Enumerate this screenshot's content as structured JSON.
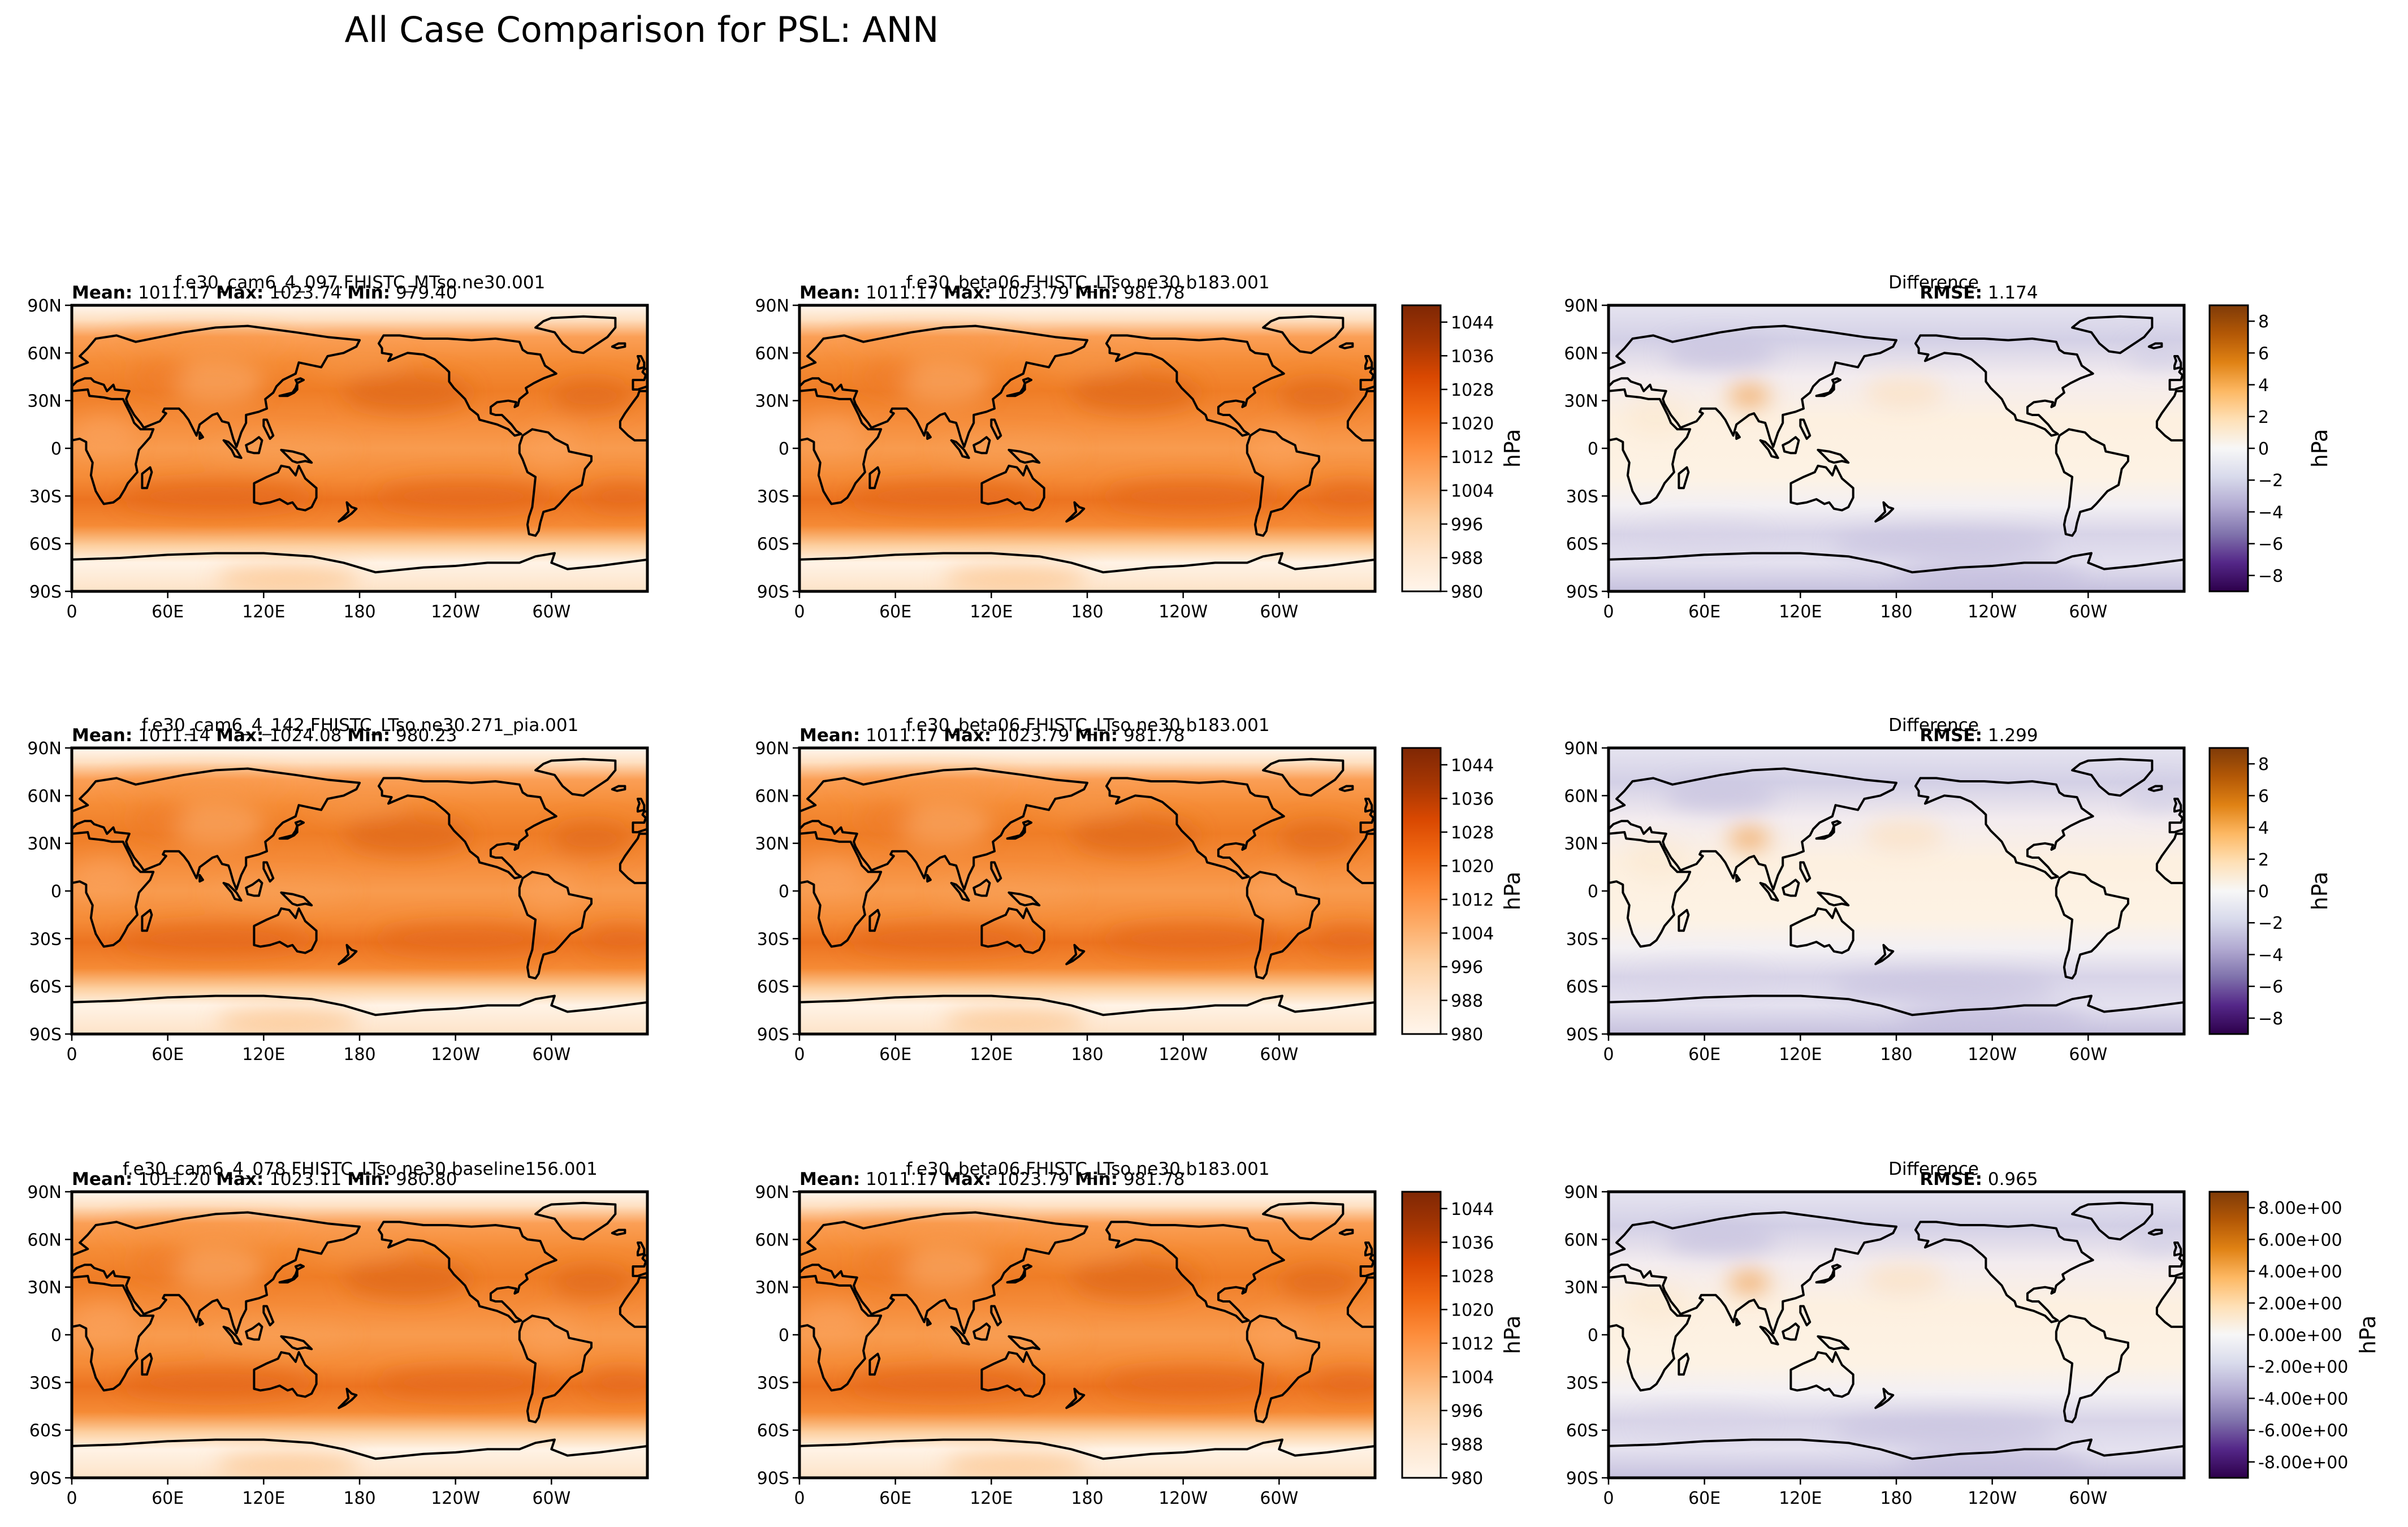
{
  "figure": {
    "title": "All Case Comparison for PSL: ANN"
  },
  "axes": {
    "x_ticks": [
      "0",
      "60E",
      "120E",
      "180",
      "120W",
      "60W"
    ],
    "y_ticks": [
      "90N",
      "60N",
      "30N",
      "0",
      "30S",
      "60S",
      "90S"
    ]
  },
  "colorbars": {
    "field": {
      "label": "hPa",
      "range": [
        980,
        1048
      ],
      "ticks": [
        "1044",
        "1036",
        "1028",
        "1020",
        "1012",
        "1004",
        "996",
        "988",
        "980"
      ],
      "colors": [
        "#fff5eb",
        "#fee6ce",
        "#fdd0a2",
        "#fdae6b",
        "#fd8d3c",
        "#f16913",
        "#d94801",
        "#a63603",
        "#7f2704"
      ]
    },
    "diff": {
      "label": "hPa",
      "range": [
        -9,
        9
      ],
      "ticks_plain": [
        "8",
        "6",
        "4",
        "2",
        "0",
        "−2",
        "−4",
        "−6",
        "−8"
      ],
      "ticks_sci": [
        "8.00e+00",
        "6.00e+00",
        "4.00e+00",
        "2.00e+00",
        "0.00e+00",
        "-2.00e+00",
        "-4.00e+00",
        "-6.00e+00",
        "-8.00e+00"
      ],
      "colors": [
        "#2d004b",
        "#542788",
        "#8073ac",
        "#b2abd2",
        "#d8daeb",
        "#f7f7f7",
        "#fee0b6",
        "#fdb863",
        "#e08214",
        "#b35806",
        "#7f3b08"
      ]
    }
  },
  "labels": {
    "mean": "Mean:",
    "max": "Max:",
    "min": "Min:",
    "rmse": "RMSE:",
    "difference": "Difference"
  },
  "chart_data": [
    {
      "type": "heatmap",
      "variable": "PSL",
      "rows": [
        {
          "test": {
            "title": "f.e30_cam6_4_097.FHISTC_MTso.ne30.001",
            "mean": "1011.17",
            "max": "1023.74",
            "min": "979.40"
          },
          "ref": {
            "title": "f.e30_beta06.FHISTC_LTso.ne30.b183.001",
            "mean": "1011.17",
            "max": "1023.79",
            "min": "981.78"
          },
          "diff": {
            "title": "Difference",
            "rmse": "1.174",
            "tick_style": "plain"
          }
        },
        {
          "test": {
            "title": "f.e30_cam6_4_142.FHISTC_LTso.ne30.271_pia.001",
            "mean": "1011.14",
            "max": "1024.08",
            "min": "980.23"
          },
          "ref": {
            "title": "f.e30_beta06.FHISTC_LTso.ne30.b183.001",
            "mean": "1011.17",
            "max": "1023.79",
            "min": "981.78"
          },
          "diff": {
            "title": "Difference",
            "rmse": "1.299",
            "tick_style": "plain"
          }
        },
        {
          "test": {
            "title": "f.e30_cam6_4_078.FHISTC_LTso.ne30.baseline156.001",
            "mean": "1011.20",
            "max": "1023.11",
            "min": "980.80"
          },
          "ref": {
            "title": "f.e30_beta06.FHISTC_LTso.ne30.b183.001",
            "mean": "1011.17",
            "max": "1023.79",
            "min": "981.78"
          },
          "diff": {
            "title": "Difference",
            "rmse": "0.965",
            "tick_style": "sci"
          }
        }
      ]
    }
  ]
}
